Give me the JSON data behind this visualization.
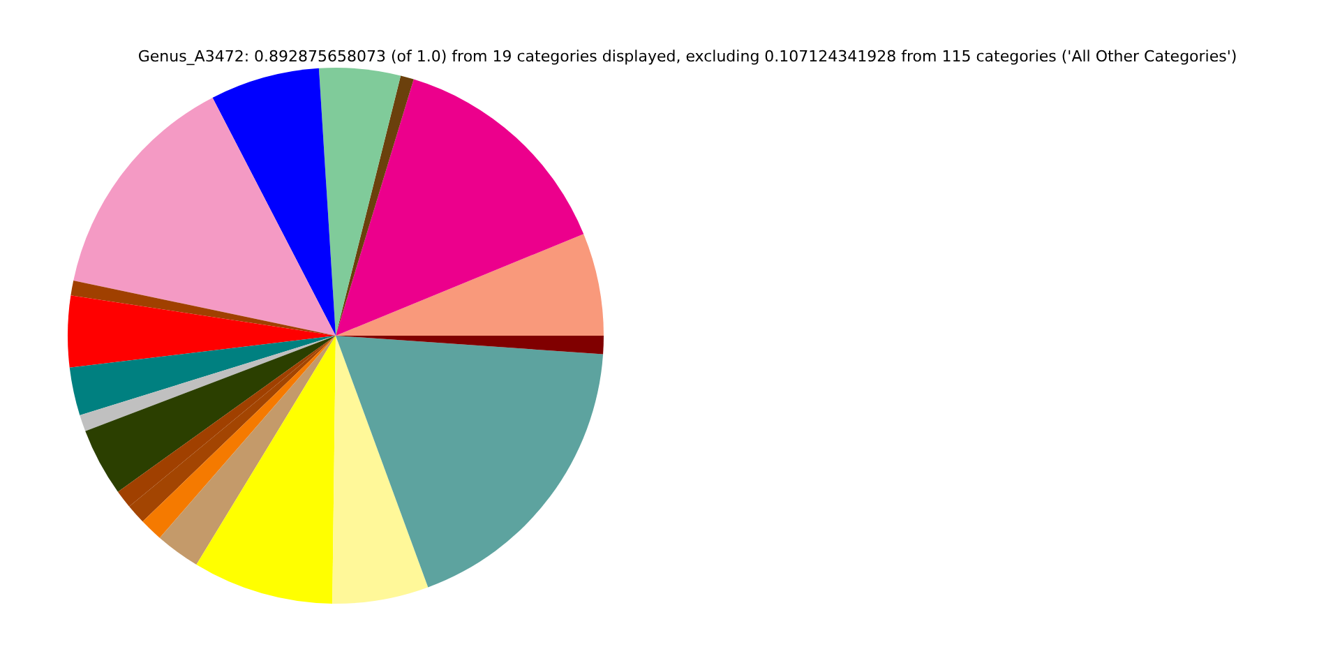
{
  "chart_data": {
    "type": "pie",
    "title": "Genus_A3472: 0.892875658073 (of 1.0) from 19 categories displayed, excluding 0.107124341928 from 115 categories ('All Other Categories')",
    "categories": [
      null,
      null,
      null,
      null,
      null,
      null,
      null,
      null,
      null,
      null,
      null,
      null,
      null,
      null,
      null,
      null,
      null,
      null,
      null
    ],
    "values": [
      6.2,
      14.1,
      0.8,
      4.9,
      6.6,
      14.1,
      0.9,
      4.3,
      2.9,
      1.0,
      4.1,
      1.1,
      1.2,
      1.4,
      2.7,
      8.5,
      5.8,
      18.3,
      1.1
    ],
    "colors": [
      "#f9997b",
      "#ec008c",
      "#6b400c",
      "#80cb9a",
      "#0000ff",
      "#f49ac4",
      "#a04000",
      "#ff0000",
      "#008080",
      "#c0c0c0",
      "#2b3f00",
      "#a04000",
      "#a34502",
      "#f57a00",
      "#c49a6a",
      "#ffff00",
      "#fff899",
      "#5da39f",
      "#800000"
    ]
  }
}
